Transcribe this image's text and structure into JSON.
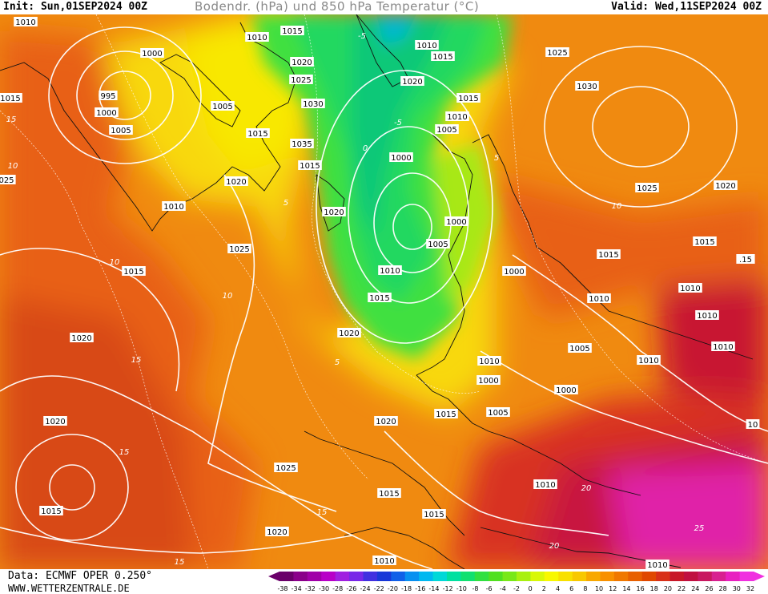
{
  "header": {
    "init": "Init: Sun,01SEP2024 00Z",
    "title": "Bodendr. (hPa) und 850 hPa Temperatur (°C)",
    "valid": "Valid: Wed,11SEP2024 00Z"
  },
  "footer": {
    "source": "Data: ECMWF OPER 0.250°",
    "site": "WWW.WETTERZENTRALE.DE"
  },
  "legend": {
    "ticks": [
      "-38",
      "-34",
      "-32",
      "-30",
      "-28",
      "-26",
      "-24",
      "-22",
      "-20",
      "-18",
      "-16",
      "-14",
      "-12",
      "-10",
      "-8",
      "-6",
      "-4",
      "-2",
      "0",
      "2",
      "4",
      "6",
      "8",
      "10",
      "12",
      "14",
      "16",
      "18",
      "20",
      "22",
      "24",
      "26",
      "28",
      "30",
      "32"
    ],
    "colors": [
      "#6a006a",
      "#8a008a",
      "#a000a8",
      "#b800c8",
      "#a020e0",
      "#7828e8",
      "#4030e0",
      "#1838d8",
      "#1060e8",
      "#0890f0",
      "#00b8f0",
      "#00d8d8",
      "#00e0a0",
      "#10e070",
      "#30e040",
      "#50e020",
      "#78e818",
      "#a8f010",
      "#d8f808",
      "#f8f800",
      "#f8e000",
      "#f8c800",
      "#f8a800",
      "#f89000",
      "#f07800",
      "#e86000",
      "#e04800",
      "#d83018",
      "#c81828",
      "#c01040",
      "#c81860",
      "#d82090",
      "#e820c0",
      "#f030e0"
    ]
  },
  "isobars": [
    {
      "text": "1010",
      "dx": 32,
      "dy": 9
    },
    {
      "text": "1015",
      "dx": 365,
      "dy": 20
    },
    {
      "text": "1010",
      "dx": 321,
      "dy": 28
    },
    {
      "text": "1000",
      "dx": 190,
      "dy": 48
    },
    {
      "text": "1020",
      "dx": 377,
      "dy": 59
    },
    {
      "text": "1010",
      "dx": 533,
      "dy": 38
    },
    {
      "text": "1015",
      "dx": 553,
      "dy": 52
    },
    {
      "text": "1025",
      "dx": 696,
      "dy": 47
    },
    {
      "text": "1025",
      "dx": 376,
      "dy": 81
    },
    {
      "text": "1020",
      "dx": 515,
      "dy": 83
    },
    {
      "text": "1030",
      "dx": 733,
      "dy": 89
    },
    {
      "text": "1015",
      "dx": 13,
      "dy": 104
    },
    {
      "text": "995",
      "dx": 135,
      "dy": 101
    },
    {
      "text": "1030",
      "dx": 391,
      "dy": 111
    },
    {
      "text": "1015",
      "dx": 585,
      "dy": 104
    },
    {
      "text": "1000",
      "dx": 133,
      "dy": 122
    },
    {
      "text": "1005",
      "dx": 278,
      "dy": 114
    },
    {
      "text": "1010",
      "dx": 571,
      "dy": 127
    },
    {
      "text": "1005",
      "dx": 151,
      "dy": 144
    },
    {
      "text": "1015",
      "dx": 322,
      "dy": 148
    },
    {
      "text": "1005",
      "dx": 558,
      "dy": 143
    },
    {
      "text": "1035",
      "dx": 377,
      "dy": 161
    },
    {
      "text": "1000",
      "dx": 501,
      "dy": 178
    },
    {
      "text": "1015",
      "dx": 387,
      "dy": 188
    },
    {
      "text": "025",
      "dx": 8,
      "dy": 206
    },
    {
      "text": "1020",
      "dx": 295,
      "dy": 208
    },
    {
      "text": "1025",
      "dx": 808,
      "dy": 216
    },
    {
      "text": "1020",
      "dx": 906,
      "dy": 213
    },
    {
      "text": "1010",
      "dx": 217,
      "dy": 239
    },
    {
      "text": "1020",
      "dx": 417,
      "dy": 246
    },
    {
      "text": "1000",
      "dx": 570,
      "dy": 258
    },
    {
      "text": "1025",
      "dx": 299,
      "dy": 292
    },
    {
      "text": "1005",
      "dx": 547,
      "dy": 286
    },
    {
      "text": "1015",
      "dx": 880,
      "dy": 283
    },
    {
      "text": "1015",
      "dx": 760,
      "dy": 299
    },
    {
      "text": ".15",
      "dx": 931,
      "dy": 305
    },
    {
      "text": "1015",
      "dx": 167,
      "dy": 320
    },
    {
      "text": "1010",
      "dx": 487,
      "dy": 319
    },
    {
      "text": "1000",
      "dx": 642,
      "dy": 320
    },
    {
      "text": "1010",
      "dx": 862,
      "dy": 341
    },
    {
      "text": "1015",
      "dx": 474,
      "dy": 353
    },
    {
      "text": "1010",
      "dx": 748,
      "dy": 354
    },
    {
      "text": "1010",
      "dx": 883,
      "dy": 375
    },
    {
      "text": "1020",
      "dx": 102,
      "dy": 403
    },
    {
      "text": "1020",
      "dx": 436,
      "dy": 397
    },
    {
      "text": "1010",
      "dx": 903,
      "dy": 414
    },
    {
      "text": "1005",
      "dx": 724,
      "dy": 416
    },
    {
      "text": "1010",
      "dx": 810,
      "dy": 431
    },
    {
      "text": "1010",
      "dx": 611,
      "dy": 432
    },
    {
      "text": "1000",
      "dx": 610,
      "dy": 456
    },
    {
      "text": "1000",
      "dx": 707,
      "dy": 468
    },
    {
      "text": "1005",
      "dx": 622,
      "dy": 496
    },
    {
      "text": "1020",
      "dx": 69,
      "dy": 507
    },
    {
      "text": "1020",
      "dx": 482,
      "dy": 507
    },
    {
      "text": "1015",
      "dx": 557,
      "dy": 498
    },
    {
      "text": "10",
      "dx": 940,
      "dy": 511
    },
    {
      "text": "1025",
      "dx": 357,
      "dy": 565
    },
    {
      "text": "1010",
      "dx": 681,
      "dy": 586
    },
    {
      "text": "1015",
      "dx": 486,
      "dy": 597
    },
    {
      "text": "1015",
      "dx": 64,
      "dy": 619
    },
    {
      "text": "1015",
      "dx": 542,
      "dy": 623
    },
    {
      "text": "1020",
      "dx": 346,
      "dy": 645
    },
    {
      "text": "1010",
      "dx": 480,
      "dy": 681
    },
    {
      "text": "1010",
      "dx": 821,
      "dy": 686
    }
  ],
  "isotherm_labels": [
    {
      "text": "-5",
      "dx": 452,
      "dy": 26
    },
    {
      "text": "-5",
      "dx": 497,
      "dy": 134
    },
    {
      "text": "0",
      "dx": 456,
      "dy": 166
    },
    {
      "text": "5",
      "dx": 357,
      "dy": 234
    },
    {
      "text": "5",
      "dx": 620,
      "dy": 178
    },
    {
      "text": "10",
      "dx": 770,
      "dy": 238
    },
    {
      "text": "10",
      "dx": 16,
      "dy": 188
    },
    {
      "text": "15",
      "dx": 14,
      "dy": 130
    },
    {
      "text": "10",
      "dx": 143,
      "dy": 308
    },
    {
      "text": "10",
      "dx": 284,
      "dy": 350
    },
    {
      "text": "15",
      "dx": 170,
      "dy": 430
    },
    {
      "text": "5",
      "dx": 421,
      "dy": 433
    },
    {
      "text": "15",
      "dx": 155,
      "dy": 545
    },
    {
      "text": "15",
      "dx": 402,
      "dy": 620
    },
    {
      "text": "20",
      "dx": 732,
      "dy": 590
    },
    {
      "text": "25",
      "dx": 873,
      "dy": 640
    },
    {
      "text": "20",
      "dx": 692,
      "dy": 662
    },
    {
      "text": "15",
      "dx": 224,
      "dy": 682
    }
  ]
}
